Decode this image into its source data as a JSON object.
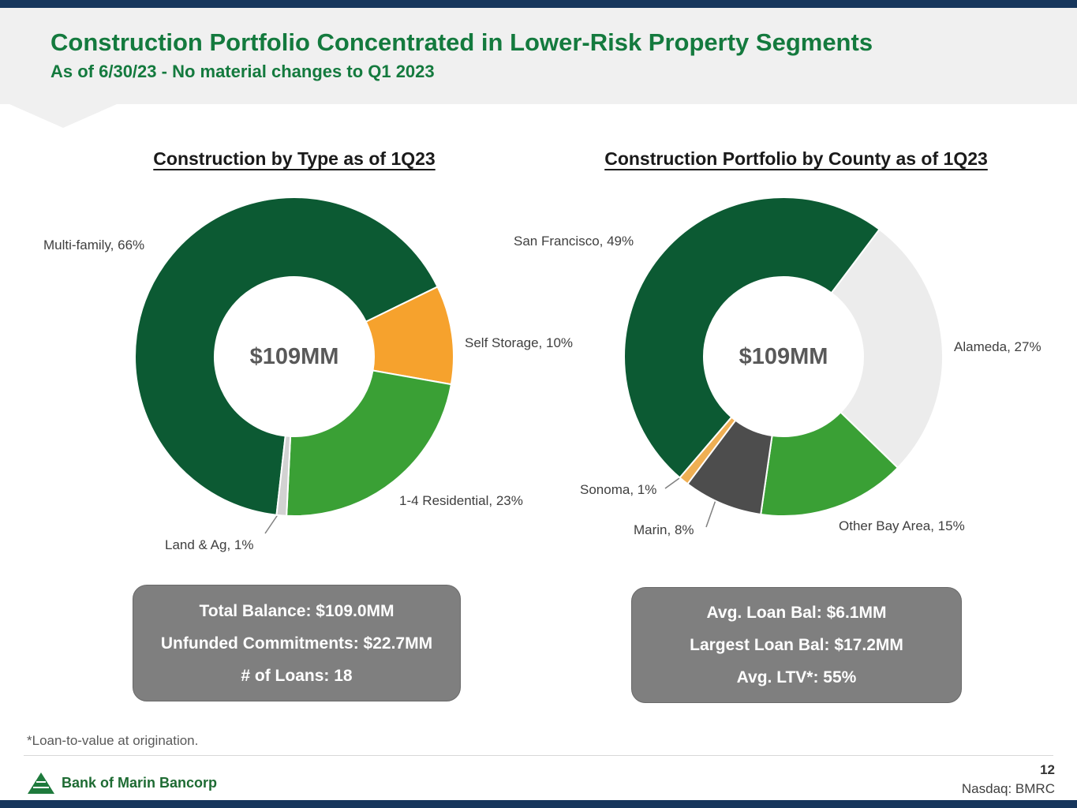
{
  "header": {
    "title": "Construction Portfolio Concentrated in Lower-Risk Property Segments",
    "subtitle": "As of 6/30/23 - No material changes to Q1 2023"
  },
  "chart_data": [
    {
      "type": "pie",
      "subtype": "donut",
      "title": "Construction by Type as of 1Q23",
      "center_label": "$109MM",
      "donut_hole_ratio": 0.5,
      "start_angle_deg": 186.4,
      "legend": "none",
      "labels_position": "outside",
      "units": "percent",
      "segments": [
        {
          "label": "Multi-family",
          "value": 66,
          "display": "Multi-family, 66%",
          "color": "#0C5A33"
        },
        {
          "label": "Self Storage",
          "value": 10,
          "display": "Self Storage, 10%",
          "color": "#F6A22D"
        },
        {
          "label": "1-4 Residential",
          "value": 23,
          "display": "1-4 Residential, 23%",
          "color": "#3AA035"
        },
        {
          "label": "Land & Ag",
          "value": 1,
          "display": "Land & Ag, 1%",
          "color": "#D2D2D2"
        }
      ]
    },
    {
      "type": "pie",
      "subtype": "donut",
      "title": "Construction Portfolio by County as of 1Q23",
      "center_label": "$109MM",
      "donut_hole_ratio": 0.5,
      "start_angle_deg": 220.6,
      "legend": "none",
      "labels_position": "outside",
      "units": "percent",
      "segments": [
        {
          "label": "San Francisco",
          "value": 49,
          "display": "San Francisco, 49%",
          "color": "#0C5A33"
        },
        {
          "label": "Alameda",
          "value": 27,
          "display": "Alameda, 27%",
          "color": "#ECECEC"
        },
        {
          "label": "Other Bay Area",
          "value": 15,
          "display": "Other Bay Area, 15%",
          "color": "#3AA035"
        },
        {
          "label": "Marin",
          "value": 8,
          "display": "Marin, 8%",
          "color": "#4D4D4D"
        },
        {
          "label": "Sonoma",
          "value": 1,
          "display": "Sonoma, 1%",
          "color": "#EFAF53"
        }
      ]
    }
  ],
  "info_boxes": [
    {
      "lines": [
        "Total Balance: $109.0MM",
        "Unfunded Commitments: $22.7MM",
        "# of Loans: 18"
      ]
    },
    {
      "lines": [
        "Avg. Loan Bal: $6.1MM",
        "Largest Loan Bal: $17.2MM",
        "Avg. LTV*: 55%"
      ]
    }
  ],
  "footnote": "*Loan-to-value at origination.",
  "footer": {
    "logo_text": "Bank of Marin Bancorp",
    "page_number": "12",
    "ticker": "Nasdaq: BMRC"
  },
  "colors": {
    "navy_bar": "#16365C",
    "header_bg": "#F0F0F0",
    "title_green": "#147A3E",
    "dark_green": "#0C5A33",
    "mid_green": "#3AA035",
    "orange": "#F6A22D",
    "light_gray_segment": "#ECECEC",
    "dark_gray_segment": "#4D4D4D",
    "pale_orange_segment": "#EFAF53",
    "sliver_gray_segment": "#D2D2D2",
    "info_box_gray": "#7F7F7F",
    "center_label_gray": "#595959"
  }
}
